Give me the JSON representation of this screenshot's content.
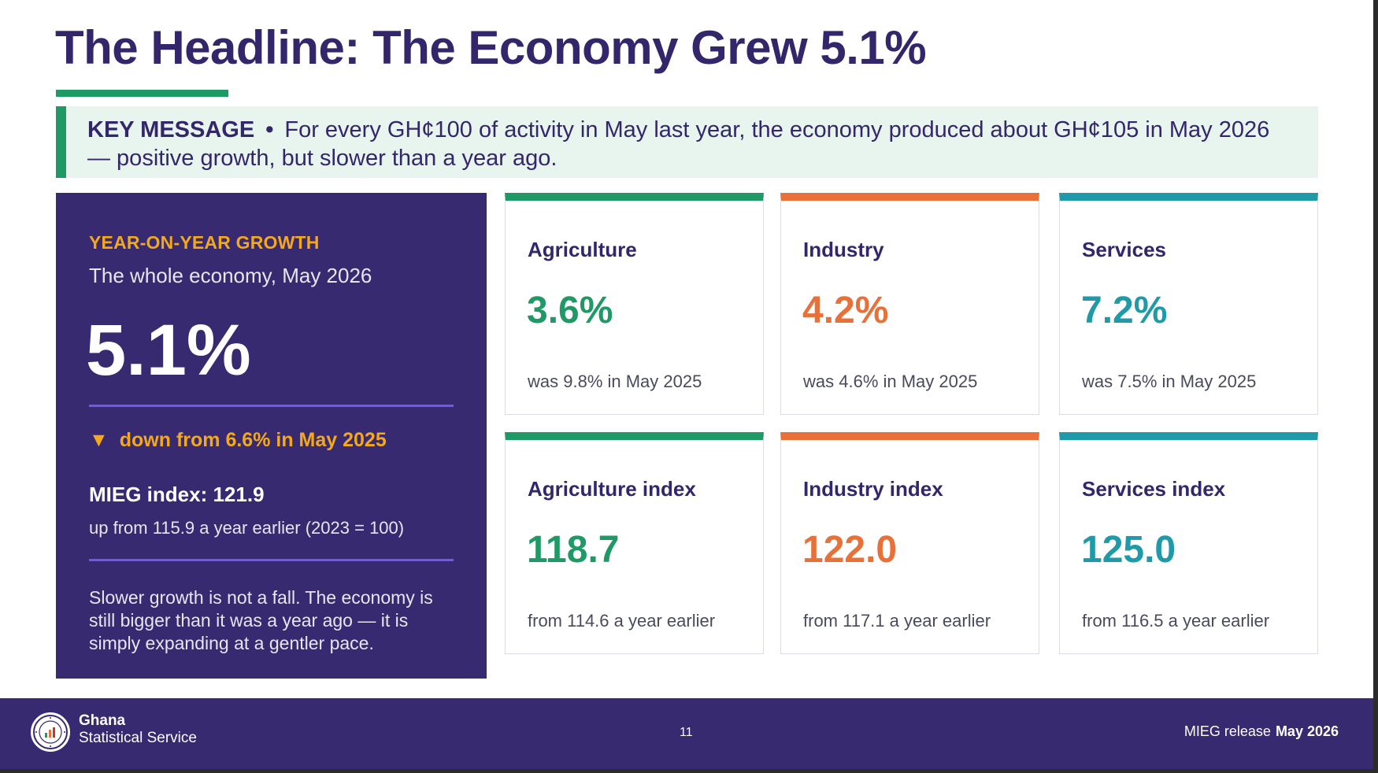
{
  "title": "The Headline: The Economy Grew 5.1%",
  "key_message": {
    "label": "KEY MESSAGE",
    "separator": "•",
    "text": "For every GH¢100 of activity in May last year, the economy produced about GH¢105 in May 2026 — positive growth, but slower than a year ago."
  },
  "growth_panel": {
    "eyebrow": "YEAR-ON-YEAR GROWTH",
    "subtitle": "The whole economy, May 2026",
    "headline_value": "5.1%",
    "trend_icon": "▼",
    "trend_text": "down from 6.6% in May 2025",
    "index_label": "MIEG index: 121.9",
    "index_note": "up from 115.9 a year earlier  (2023 = 100)",
    "note": "Slower growth is not a fall. The economy is still bigger than it was a year ago — it is simply expanding at a gentler pace."
  },
  "sector_cards": [
    {
      "title": "Agriculture",
      "value": "3.6%",
      "note": "was 9.8% in May 2025",
      "color": "#1f9a66"
    },
    {
      "title": "Industry",
      "value": "4.2%",
      "note": "was 4.6% in May 2025",
      "color": "#e8713a"
    },
    {
      "title": "Services",
      "value": "7.2%",
      "note": "was 7.5% in May 2025",
      "color": "#1f9aa8"
    }
  ],
  "index_cards": [
    {
      "title": "Agriculture index",
      "value": "118.7",
      "note": "from 114.6 a year earlier",
      "color": "#1f9a66"
    },
    {
      "title": "Industry index",
      "value": "122.0",
      "note": "from 117.1 a year earlier",
      "color": "#e8713a"
    },
    {
      "title": "Services index",
      "value": "125.0",
      "note": "from 116.5 a year earlier",
      "color": "#1f9aa8"
    }
  ],
  "footer": {
    "logo_icon": "ghana-statistical-service-seal",
    "org_line1": "Ghana",
    "org_line2": "Statistical Service",
    "page_number": "11",
    "release_label": "MIEG release",
    "release_date": "May 2026"
  },
  "colors": {
    "primary": "#33266b",
    "panel": "#372a70",
    "accent_green": "#1f9a66",
    "accent_orange": "#e8713a",
    "accent_teal": "#1f9aa8",
    "accent_amber": "#f4a81c"
  }
}
